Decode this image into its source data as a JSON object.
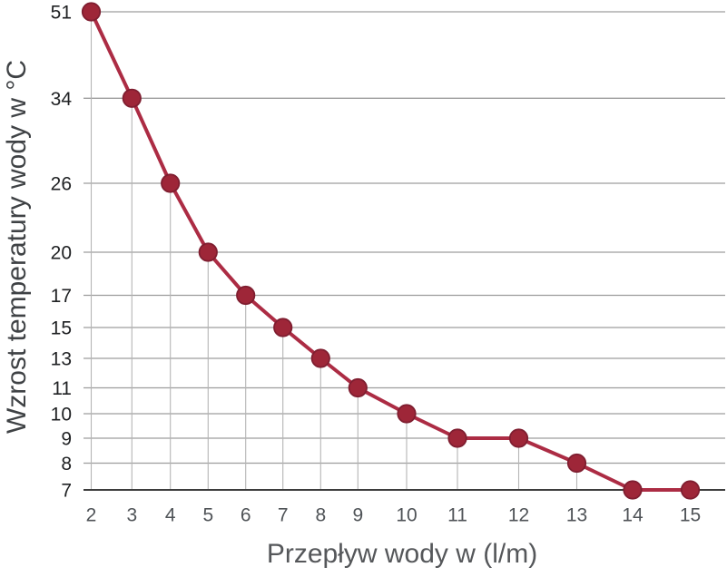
{
  "chart_data": {
    "type": "line",
    "title": "",
    "xlabel": "Przepływ wody w (l/m)",
    "ylabel": "Wzrost temperatury wody w °C",
    "x": [
      2,
      3,
      4,
      5,
      6,
      7,
      8,
      9,
      10,
      11,
      12,
      13,
      14,
      15
    ],
    "values": [
      51,
      34,
      26,
      20,
      17,
      15,
      13,
      11,
      10,
      9,
      9,
      8,
      7,
      7
    ],
    "x_ticks": [
      "2",
      "3",
      "4",
      "5",
      "6",
      "7",
      "8",
      "9",
      "10",
      "11",
      "12",
      "13",
      "14",
      "15"
    ],
    "y_ticks": [
      "51",
      "34",
      "26",
      "20",
      "17",
      "15",
      "13",
      "11",
      "10",
      "9",
      "8",
      "7"
    ],
    "x_range": [
      2,
      15
    ],
    "y_range": [
      7,
      51
    ],
    "legend": "none",
    "grid": {
      "horizontal": "full-width line at each y tick value",
      "vertical": "dropline from each data point down to the x-axis"
    },
    "colors": {
      "line": "#ac2c44",
      "marker_fill": "#9e2638",
      "marker_stroke": "#7f1e30",
      "gridline": "#9d9d9d",
      "dropline": "#b5b5b5",
      "axis_line": "#3d3d3d",
      "y_tick_label": "#202224",
      "x_tick_label": "#4f5357",
      "background": "#ffffff"
    }
  }
}
